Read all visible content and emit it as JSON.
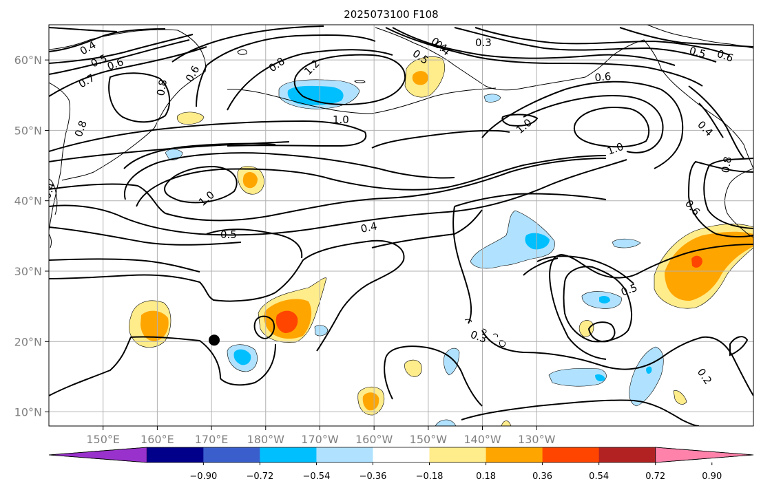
{
  "title": "2025073100 F108",
  "map": {
    "lon_range_east": [
      140,
      270
    ],
    "lat_range": [
      8,
      65
    ],
    "grid": true,
    "ytick_labels": [
      "10°N",
      "20°N",
      "30°N",
      "40°N",
      "50°N",
      "60°N"
    ],
    "xtick_labels": [
      "150°E",
      "160°E",
      "170°E",
      "180°W",
      "170°W",
      "160°W",
      "150°W",
      "140°W",
      "130°W"
    ],
    "contour_labels": [
      {
        "text": "0.4"
      },
      {
        "text": "0.5"
      },
      {
        "text": "0.6"
      },
      {
        "text": "0.7"
      },
      {
        "text": "0.8"
      },
      {
        "text": "0.6"
      },
      {
        "text": "0.8"
      },
      {
        "text": "0.8"
      },
      {
        "text": "1.2"
      },
      {
        "text": "1.0"
      },
      {
        "text": "0.4"
      },
      {
        "text": "0.5"
      },
      {
        "text": "0.4"
      },
      {
        "text": "0.3"
      },
      {
        "text": "0.6"
      },
      {
        "text": "0.5"
      },
      {
        "text": "0.6"
      },
      {
        "text": "1.0"
      },
      {
        "text": "1.0"
      },
      {
        "text": "0.4"
      },
      {
        "text": "0.8"
      },
      {
        "text": "0.6"
      },
      {
        "text": "1.0"
      },
      {
        "text": "0.5"
      },
      {
        "text": "0.4"
      },
      {
        "text": "0.5"
      },
      {
        "text": "0.3"
      },
      {
        "text": "0.2"
      },
      {
        "text": "0.4"
      }
    ],
    "storm_marker": {
      "lon": 170.5,
      "lat": 20.2
    }
  },
  "colorbar": {
    "colors": [
      "#9932cc",
      "#00008b",
      "#3a5fcd",
      "#00bfff",
      "#b0e2ff",
      "#ffffff",
      "#ffec8b",
      "#ffa500",
      "#ff4500",
      "#b22222",
      "#ff82ab"
    ],
    "tick_labels": [
      "−0.90",
      "−0.72",
      "−0.54",
      "−0.36",
      "−0.18",
      "0.18",
      "0.36",
      "0.54",
      "0.72",
      "0.90"
    ]
  }
}
